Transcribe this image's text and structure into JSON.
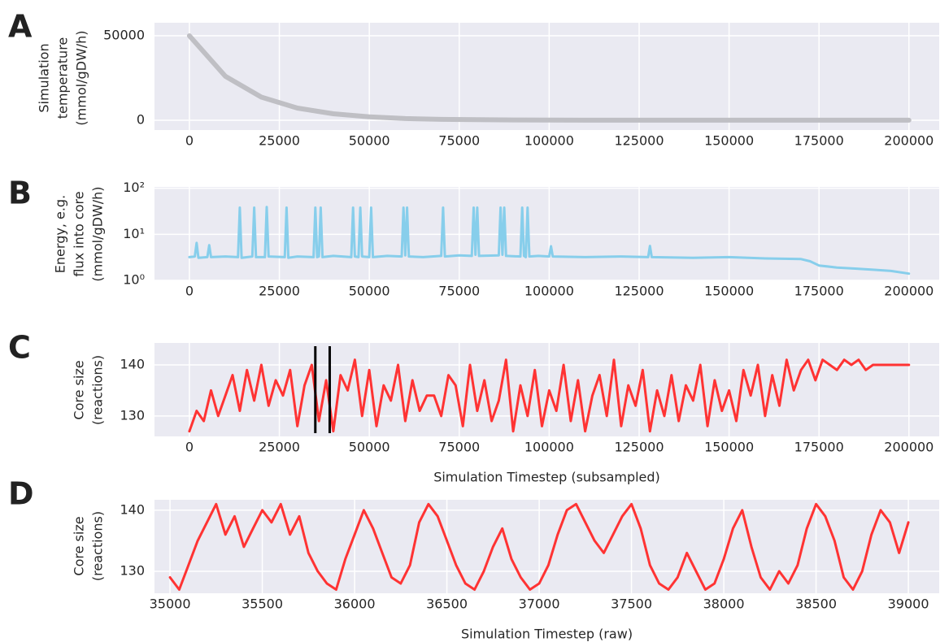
{
  "chart_data": [
    {
      "type": "line",
      "label": "A",
      "ylabel": [
        "Simulation",
        "temperature",
        "(mmol/gDW/h)"
      ],
      "color": "#bfbfc4",
      "x": [
        0,
        10000,
        20000,
        30000,
        40000,
        50000,
        60000,
        70000,
        80000,
        90000,
        100000,
        110000,
        120000,
        130000,
        140000,
        150000,
        160000,
        170000,
        180000,
        190000,
        200000
      ],
      "values": [
        50000,
        26000,
        13700,
        7200,
        3800,
        2000,
        1000,
        500,
        300,
        150,
        80,
        40,
        20,
        10,
        5,
        0,
        0,
        0,
        0,
        0,
        0
      ],
      "xlim": [
        -9700,
        208400
      ],
      "ylim": [
        -5800,
        57700
      ],
      "xticks": [
        0,
        25000,
        50000,
        75000,
        100000,
        125000,
        150000,
        175000,
        200000
      ],
      "yticks": [
        0,
        50000
      ],
      "grid": true
    },
    {
      "type": "line",
      "label": "B",
      "ylabel": [
        "Energy, e.g.",
        "flux into core",
        "(mmol/gDW/h)"
      ],
      "color": "#87ceeb",
      "log_y": true,
      "x": [
        0,
        1500,
        2000,
        2500,
        5000,
        5500,
        6000,
        10000,
        13500,
        14000,
        14500,
        17500,
        18000,
        18500,
        21000,
        21500,
        22000,
        26500,
        27000,
        27500,
        30000,
        34500,
        35000,
        35500,
        36000,
        36500,
        37000,
        40000,
        45000,
        45500,
        46000,
        47000,
        47500,
        48000,
        50000,
        50500,
        51000,
        55000,
        59000,
        59500,
        60000,
        60500,
        61000,
        65000,
        70000,
        70500,
        71000,
        75000,
        78500,
        79000,
        79500,
        80000,
        80500,
        86000,
        86500,
        87000,
        87500,
        88000,
        92000,
        92500,
        93000,
        93500,
        94000,
        94500,
        97000,
        100000,
        100500,
        101000,
        110000,
        120000,
        127500,
        128000,
        128500,
        140000,
        150000,
        160000,
        170000,
        172500,
        175000,
        180000,
        185000,
        190000,
        195000,
        200000
      ],
      "values": [
        3.2,
        3.3,
        6.5,
        3.1,
        3.2,
        5.8,
        3.2,
        3.3,
        3.2,
        38,
        3.1,
        3.3,
        38,
        3.2,
        3.2,
        39,
        3.3,
        3.2,
        38,
        3.1,
        3.3,
        3.2,
        38,
        3.2,
        3.3,
        38,
        3.2,
        3.4,
        3.2,
        38,
        3.3,
        3.2,
        38,
        3.3,
        3.2,
        38,
        3.2,
        3.4,
        3.3,
        38,
        3.5,
        38,
        3.3,
        3.2,
        3.4,
        38,
        3.3,
        3.5,
        3.4,
        38,
        3.6,
        38,
        3.4,
        3.5,
        38,
        3.6,
        38,
        3.4,
        3.3,
        38,
        3.4,
        3.2,
        38,
        3.3,
        3.4,
        3.3,
        5.5,
        3.3,
        3.2,
        3.3,
        3.2,
        5.6,
        3.2,
        3.1,
        3.2,
        3.0,
        2.9,
        2.6,
        2.1,
        1.9,
        1.8,
        1.7,
        1.6,
        1.4
      ],
      "xlim": [
        -9700,
        208400
      ],
      "ylim": [
        1,
        107
      ],
      "xticks": [
        0,
        25000,
        50000,
        75000,
        100000,
        125000,
        150000,
        175000,
        200000
      ],
      "yticks": [
        {
          "value": 1,
          "label": "10⁰"
        },
        {
          "value": 10,
          "label": "10¹"
        },
        {
          "value": 100,
          "label": "10²"
        }
      ],
      "grid": true
    },
    {
      "type": "line",
      "label": "C",
      "ylabel": [
        "Core size",
        "(reactions)"
      ],
      "xlabel": "Simulation Timestep (subsampled)",
      "color": "#ff3333",
      "x": [
        0,
        2000,
        4000,
        6000,
        8000,
        10000,
        12000,
        14000,
        16000,
        18000,
        20000,
        22000,
        24000,
        26000,
        28000,
        30000,
        32000,
        34000,
        36000,
        38000,
        40000,
        42000,
        44000,
        46000,
        48000,
        50000,
        52000,
        54000,
        56000,
        58000,
        60000,
        62000,
        64000,
        66000,
        68000,
        70000,
        72000,
        74000,
        76000,
        78000,
        80000,
        82000,
        84000,
        86000,
        88000,
        90000,
        92000,
        94000,
        96000,
        98000,
        100000,
        102000,
        104000,
        106000,
        108000,
        110000,
        112000,
        114000,
        116000,
        118000,
        120000,
        122000,
        124000,
        126000,
        128000,
        130000,
        132000,
        134000,
        136000,
        138000,
        140000,
        142000,
        144000,
        146000,
        148000,
        150000,
        152000,
        154000,
        156000,
        158000,
        160000,
        162000,
        164000,
        166000,
        168000,
        170000,
        172000,
        174000,
        176000,
        178000,
        180000,
        182000,
        184000,
        186000,
        188000,
        190000,
        192000,
        194000,
        196000,
        198000,
        200000
      ],
      "values": [
        127,
        131,
        129,
        135,
        130,
        134,
        138,
        131,
        139,
        133,
        140,
        132,
        137,
        134,
        139,
        128,
        136,
        140,
        129,
        137,
        127,
        138,
        135,
        141,
        130,
        139,
        128,
        136,
        133,
        140,
        129,
        137,
        131,
        134,
        134,
        130,
        138,
        136,
        128,
        140,
        131,
        137,
        129,
        133,
        141,
        127,
        136,
        130,
        139,
        128,
        135,
        131,
        140,
        129,
        137,
        127,
        134,
        138,
        130,
        141,
        128,
        136,
        132,
        139,
        127,
        135,
        130,
        138,
        129,
        136,
        133,
        140,
        128,
        137,
        131,
        135,
        129,
        139,
        134,
        140,
        130,
        138,
        132,
        141,
        135,
        139,
        141,
        137,
        141,
        140,
        139,
        141,
        140,
        141,
        139,
        140,
        140,
        140,
        140,
        140,
        140
      ],
      "vlines": [
        35000,
        39000
      ],
      "vline_color": "#000000",
      "xlim": [
        -9700,
        208400
      ],
      "ylim": [
        126,
        144.3
      ],
      "xticks": [
        0,
        25000,
        50000,
        75000,
        100000,
        125000,
        150000,
        175000,
        200000
      ],
      "yticks": [
        130,
        140
      ],
      "grid": true
    },
    {
      "type": "line",
      "label": "D",
      "ylabel": [
        "Core size",
        "(reactions)"
      ],
      "xlabel": "Simulation Timestep (raw)",
      "color": "#ff3333",
      "x": [
        35000,
        35050,
        35100,
        35150,
        35200,
        35250,
        35300,
        35350,
        35400,
        35450,
        35500,
        35550,
        35600,
        35650,
        35700,
        35750,
        35800,
        35850,
        35900,
        35950,
        36000,
        36050,
        36100,
        36150,
        36200,
        36250,
        36300,
        36350,
        36400,
        36450,
        36500,
        36550,
        36600,
        36650,
        36700,
        36750,
        36800,
        36850,
        36900,
        36950,
        37000,
        37050,
        37100,
        37150,
        37200,
        37250,
        37300,
        37350,
        37400,
        37450,
        37500,
        37550,
        37600,
        37650,
        37700,
        37750,
        37800,
        37850,
        37900,
        37950,
        38000,
        38050,
        38100,
        38150,
        38200,
        38250,
        38300,
        38350,
        38400,
        38450,
        38500,
        38550,
        38600,
        38650,
        38700,
        38750,
        38800,
        38850,
        38900,
        38950,
        39000
      ],
      "values": [
        129,
        127,
        131,
        135,
        138,
        141,
        136,
        139,
        134,
        137,
        140,
        138,
        141,
        136,
        139,
        133,
        130,
        128,
        127,
        132,
        136,
        140,
        137,
        133,
        129,
        128,
        131,
        138,
        141,
        139,
        135,
        131,
        128,
        127,
        130,
        134,
        137,
        132,
        129,
        127,
        128,
        131,
        136,
        140,
        141,
        138,
        135,
        133,
        136,
        139,
        141,
        137,
        131,
        128,
        127,
        129,
        133,
        130,
        127,
        128,
        132,
        137,
        140,
        134,
        129,
        127,
        130,
        128,
        131,
        137,
        141,
        139,
        135,
        129,
        127,
        130,
        136,
        140,
        138,
        133,
        138
      ],
      "xlim": [
        34916,
        39167
      ],
      "ylim": [
        126.4,
        141.7
      ],
      "xticks": [
        35000,
        35500,
        36000,
        36500,
        37000,
        37500,
        38000,
        38500,
        39000
      ],
      "yticks": [
        130,
        140
      ],
      "grid": true
    }
  ]
}
